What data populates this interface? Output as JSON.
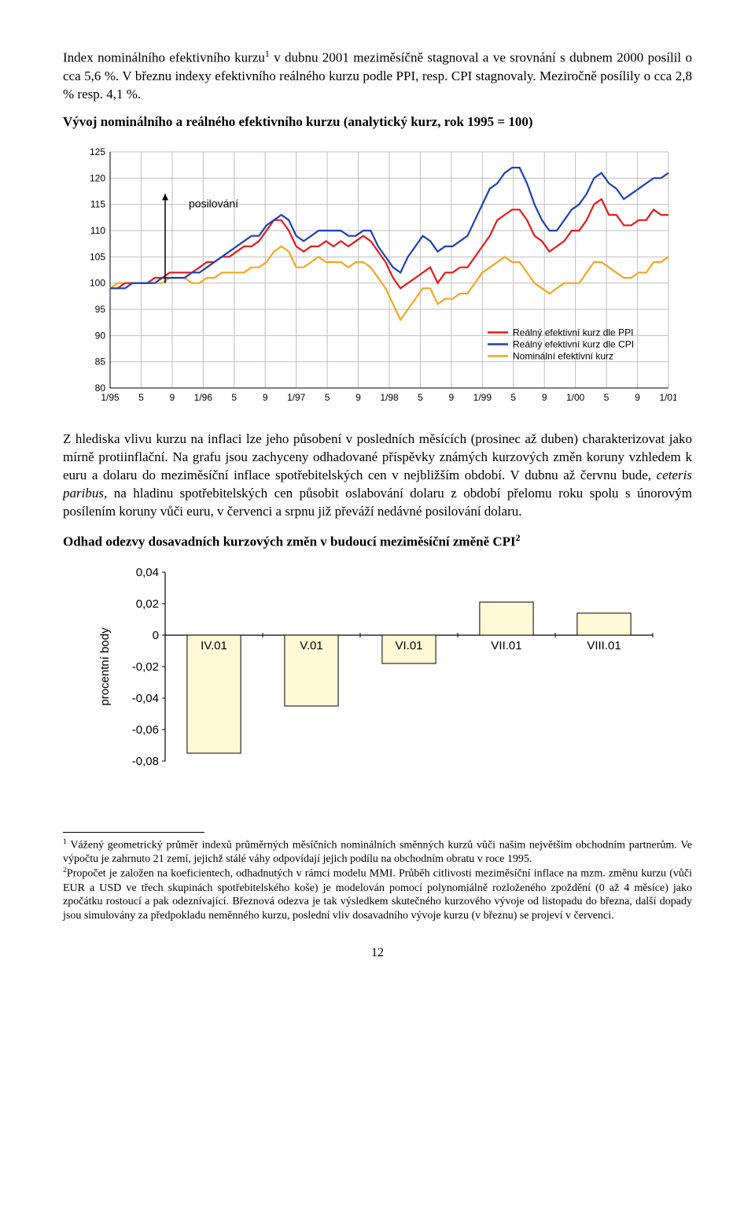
{
  "para1_parts": {
    "a": "Index nominálního efektivního kurzu",
    "b": " v dubnu  2001 meziměsíčně stagnoval a ve srovnání s dubnem 2000 posílil o cca 5,6 %. V březnu indexy efektivního reálného kurzu podle PPI, resp. CPI stagnovaly. Meziročně posílily o cca 2,8 % resp. 4,1 %."
  },
  "chart1_title": "Vývoj nominálního a reálného efektivního kurzu (analytický kurz, rok 1995 = 100)",
  "chart1": {
    "ymin": 80,
    "ymax": 125,
    "ystep": 5,
    "xlabels": [
      "1/95",
      "5",
      "9",
      "1/96",
      "5",
      "9",
      "1/97",
      "5",
      "9",
      "1/98",
      "5",
      "9",
      "1/99",
      "5",
      "9",
      "1/00",
      "5",
      "9",
      "1/01"
    ],
    "annotation": "posilování",
    "legend": [
      {
        "label": "Reálný efektivní kurz dle PPI",
        "color": "#e31a1c"
      },
      {
        "label": "Reálný efektivní  kurz dle CPI",
        "color": "#1f3fb8"
      },
      {
        "label": "Nominální efektivní kurz",
        "color": "#f5a623"
      }
    ],
    "colors": {
      "ppi": "#e31a1c",
      "cpi": "#1f3fb8",
      "nom": "#f5a623",
      "grid": "#bfbfbf",
      "axis": "#000",
      "text": "#000",
      "bg": "#ffffff",
      "label_font": "Arial",
      "tick_fontsize": 12,
      "annot_fontsize": 14
    },
    "series": {
      "ppi": [
        99,
        99,
        100,
        100,
        100,
        100,
        101,
        101,
        102,
        102,
        102,
        102,
        103,
        104,
        104,
        105,
        105,
        106,
        107,
        107,
        108,
        110,
        112,
        112,
        110,
        107,
        106,
        107,
        107,
        108,
        107,
        108,
        107,
        108,
        109,
        108,
        106,
        104,
        101,
        99,
        100,
        101,
        102,
        103,
        100,
        102,
        102,
        103,
        103,
        105,
        107,
        109,
        112,
        113,
        114,
        114,
        112,
        109,
        108,
        106,
        107,
        108,
        110,
        110,
        112,
        115,
        116,
        113,
        113,
        111,
        111,
        112,
        112,
        114,
        113,
        113
      ],
      "cpi": [
        99,
        99,
        99,
        100,
        100,
        100,
        100,
        101,
        101,
        101,
        101,
        102,
        102,
        103,
        104,
        105,
        106,
        107,
        108,
        109,
        109,
        111,
        112,
        113,
        112,
        109,
        108,
        109,
        110,
        110,
        110,
        110,
        109,
        109,
        110,
        110,
        107,
        105,
        103,
        102,
        105,
        107,
        109,
        108,
        106,
        107,
        107,
        108,
        109,
        112,
        115,
        118,
        119,
        121,
        122,
        122,
        119,
        115,
        112,
        110,
        110,
        112,
        114,
        115,
        117,
        120,
        121,
        119,
        118,
        116,
        117,
        118,
        119,
        120,
        120,
        121
      ],
      "nom": [
        99,
        100,
        100,
        100,
        100,
        100,
        100,
        100,
        101,
        101,
        101,
        100,
        100,
        101,
        101,
        102,
        102,
        102,
        102,
        103,
        103,
        104,
        106,
        107,
        106,
        103,
        103,
        104,
        105,
        104,
        104,
        104,
        103,
        104,
        104,
        103,
        101,
        99,
        96,
        93,
        95,
        97,
        99,
        99,
        96,
        97,
        97,
        98,
        98,
        100,
        102,
        103,
        104,
        105,
        104,
        104,
        102,
        100,
        99,
        98,
        99,
        100,
        100,
        100,
        102,
        104,
        104,
        103,
        102,
        101,
        101,
        102,
        102,
        104,
        104,
        105
      ]
    }
  },
  "para2": "Z hlediska vlivu kurzu na inflaci lze jeho působení v posledních měsících (prosinec až duben) charakterizovat jako mírně protiinflační. Na grafu jsou zachyceny odhadované příspěvky známých kurzových změn koruny vzhledem k euru a dolaru do meziměsíční inflace spotřebitelských cen v nejbližším období. V dubnu až červnu bude, ceteris paribus, na hladinu spotřebitelských cen působit oslabování dolaru z období přelomu roku spolu s únorovým posílením koruny vůči euru, v červenci a srpnu již převáží nedávné posilování dolaru.",
  "para2_italic": "ceteris paribus,",
  "chart2_title_parts": {
    "a": "Odhad odezvy dosavadních kurzových změn v budoucí meziměsíční změně CPI",
    "sup": "2"
  },
  "chart2": {
    "ymin": -0.08,
    "ymax": 0.04,
    "ystep": 0.02,
    "yticks": [
      "0,04",
      "0,02",
      "0",
      "-0,02",
      "-0,04",
      "-0,06",
      "-0,08"
    ],
    "ylabel": "procentní body",
    "categories": [
      "IV.01",
      "V.01",
      "VI.01",
      "VII.01",
      "VIII.01"
    ],
    "values": [
      -0.075,
      -0.045,
      -0.018,
      0.021,
      0.014
    ],
    "bar_color": "#fff9d6",
    "bar_border": "#000",
    "axis_color": "#000",
    "font": "Arial",
    "tick_fontsize": 15,
    "cat_fontsize": 15
  },
  "footnote1_parts": {
    "sup": "1",
    "text": " Vážený geometrický průměr indexů průměrných měsíčních nominálních směnných kurzů vůči našim největším obchodním partnerům. Ve výpočtu je zahrnuto 21 zemí, jejichž stálé váhy odpovídají jejich podílu na obchodním obratu v roce 1995."
  },
  "footnote2_parts": {
    "sup": "2",
    "text": "Propočet je založen na koeficientech, odhadnutých v rámci modelu MMI. Průběh citlivosti meziměsíční inflace na mzm.  změnu kurzu (vůči EUR a USD ve třech skupinách spotřebitelského koše) je modelován pomocí polynomiálně rozloženého zpoždění (0 až 4 měsíce) jako zpočátku rostoucí a pak odeznívající. Březnová odezva je tak výsledkem skutečného kurzového vývoje od listopadu do března, další dopady jsou simulovány za předpokladu neměnného kurzu, poslední vliv dosavadního vývoje kurzu (v březnu) se projeví v červenci."
  },
  "page_number": "12"
}
